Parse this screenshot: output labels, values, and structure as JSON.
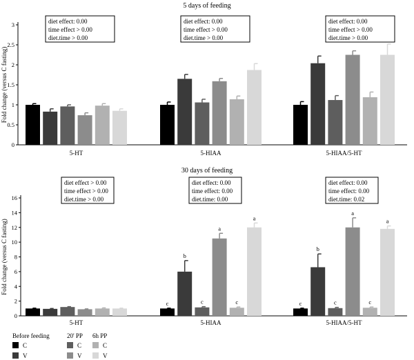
{
  "chart_data": [
    {
      "type": "bar",
      "title": "5 days of feeding",
      "ylabel": "Fold change (versus C fasting)",
      "ylim": [
        0,
        3
      ],
      "yticks": [
        0,
        0.5,
        1,
        1.5,
        2,
        2.5,
        3
      ],
      "categories": [
        "5-HT",
        "5-HIAA",
        "5-HIAA/5-HT"
      ],
      "series": [
        {
          "name": "C",
          "values": [
            1.0,
            1.0,
            1.0
          ],
          "errors": [
            0.03,
            0.07,
            0.08
          ]
        },
        {
          "name": "V",
          "values": [
            0.83,
            1.65,
            2.04
          ],
          "errors": [
            0.07,
            0.11,
            0.18
          ]
        },
        {
          "name": "C",
          "values": [
            0.96,
            1.06,
            1.12
          ],
          "errors": [
            0.04,
            0.08,
            0.11
          ]
        },
        {
          "name": "V",
          "values": [
            0.74,
            1.59,
            2.25
          ],
          "errors": [
            0.06,
            0.07,
            0.1
          ]
        },
        {
          "name": "C",
          "values": [
            0.98,
            1.14,
            1.19
          ],
          "errors": [
            0.05,
            0.08,
            0.13
          ]
        },
        {
          "name": "V",
          "values": [
            0.85,
            1.87,
            2.25
          ],
          "errors": [
            0.05,
            0.16,
            0.27
          ]
        }
      ],
      "stats": [
        [
          "diet effect: 0.00",
          "time effect > 0.00",
          "diet.time > 0.00"
        ],
        [
          "diet effect: 0.00",
          "time effect > 0.00",
          "diet.time > 0.00"
        ],
        [
          "diet effect: 0.00",
          "time effect > 0.00",
          "diet.time > 0.00"
        ]
      ]
    },
    {
      "type": "bar",
      "title": "30 days of feeding",
      "ylabel": "Fold change (versus C fasting)",
      "ylim": [
        0,
        16
      ],
      "yticks": [
        0,
        2,
        4,
        6,
        8,
        10,
        12,
        14,
        16
      ],
      "categories": [
        "5-HT",
        "5-HIAA",
        "5-HIAA/5-HT"
      ],
      "series": [
        {
          "name": "C",
          "values": [
            1.0,
            1.0,
            1.0
          ],
          "errors": [
            0.05,
            0.05,
            0.05
          ],
          "labels": [
            "",
            "c",
            "c"
          ]
        },
        {
          "name": "V",
          "values": [
            0.95,
            6.0,
            6.6
          ],
          "errors": [
            0.05,
            1.5,
            1.8
          ],
          "labels": [
            "",
            "b",
            "b"
          ]
        },
        {
          "name": "C",
          "values": [
            1.2,
            1.15,
            1.05
          ],
          "errors": [
            0.05,
            0.1,
            0.1
          ],
          "labels": [
            "",
            "c",
            "c"
          ]
        },
        {
          "name": "V",
          "values": [
            0.9,
            10.5,
            12.0
          ],
          "errors": [
            0.05,
            0.7,
            1.3
          ],
          "labels": [
            "",
            "a",
            "a"
          ]
        },
        {
          "name": "C",
          "values": [
            1.0,
            1.1,
            1.1
          ],
          "errors": [
            0.08,
            0.1,
            0.1
          ],
          "labels": [
            "",
            "c",
            "c"
          ]
        },
        {
          "name": "V",
          "values": [
            1.0,
            12.0,
            11.8
          ],
          "errors": [
            0.05,
            0.6,
            0.4
          ],
          "labels": [
            "",
            "a",
            "a"
          ]
        }
      ],
      "stats": [
        [
          "diet effect > 0.00",
          "time effect > 0.00",
          "diet.time > 0.00"
        ],
        [
          "diet effect: 0.00",
          "time effect: 0.00",
          "diet.time: 0.00"
        ],
        [
          "diet effect: 0.00",
          "time effect: 0.00",
          "diet.time: 0.02"
        ]
      ]
    }
  ],
  "legend": {
    "groups": [
      {
        "title": "Before feeding",
        "items": [
          {
            "label": "C",
            "color": "#000000"
          },
          {
            "label": "V",
            "color": "#3a3a3a"
          }
        ]
      },
      {
        "title": "20' PP",
        "items": [
          {
            "label": "C",
            "color": "#5e5e5e"
          },
          {
            "label": "V",
            "color": "#8c8c8c"
          }
        ]
      },
      {
        "title": "6h PP",
        "items": [
          {
            "label": "C",
            "color": "#b1b1b1"
          },
          {
            "label": "V",
            "color": "#d8d8d8"
          }
        ]
      }
    ]
  },
  "colors": [
    "#000000",
    "#3a3a3a",
    "#5e5e5e",
    "#8c8c8c",
    "#b1b1b1",
    "#d8d8d8"
  ]
}
